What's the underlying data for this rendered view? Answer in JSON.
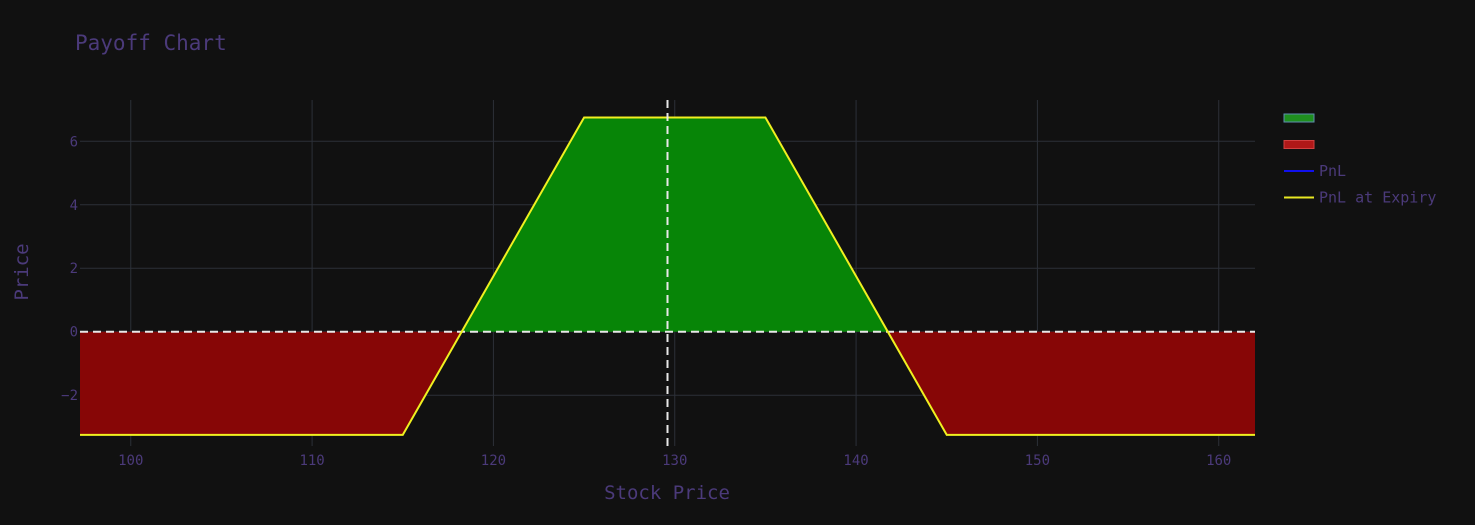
{
  "chart_data": {
    "type": "area",
    "title": "Payoff Chart",
    "xlabel": "Stock Price",
    "ylabel": "Price",
    "xlim": [
      97.2,
      162.0
    ],
    "ylim": [
      -3.6,
      7.3
    ],
    "x_ticks": [
      100,
      110,
      120,
      130,
      140,
      150,
      160
    ],
    "y_ticks": [
      -2,
      0,
      2,
      4,
      6
    ],
    "grid": true,
    "legend_position": "right",
    "zero_line": 0,
    "spot_price": 129.6,
    "pnl_at_expiry": {
      "x": [
        97.2,
        115,
        125,
        135,
        145,
        162.0
      ],
      "y": [
        -3.25,
        -3.25,
        6.75,
        6.75,
        -3.25,
        -3.25
      ]
    },
    "breakevens": [
      118.25,
      141.75
    ],
    "series": [
      {
        "name": "",
        "color": "#1f8f1f",
        "kind": "profit-fill"
      },
      {
        "name": "",
        "color": "#b01818",
        "kind": "loss-fill"
      },
      {
        "name": "PnL",
        "color": "#1010ee",
        "kind": "line"
      },
      {
        "name": "PnL at Expiry",
        "color": "#e8e822",
        "kind": "line"
      }
    ],
    "colors": {
      "background": "#111111",
      "grid": "#2c3038",
      "text": "#4b3a7a",
      "profit": "#078507",
      "loss": "#870606",
      "expiry_line": "#f0f020",
      "zero_line": "#e8e8e8"
    }
  }
}
